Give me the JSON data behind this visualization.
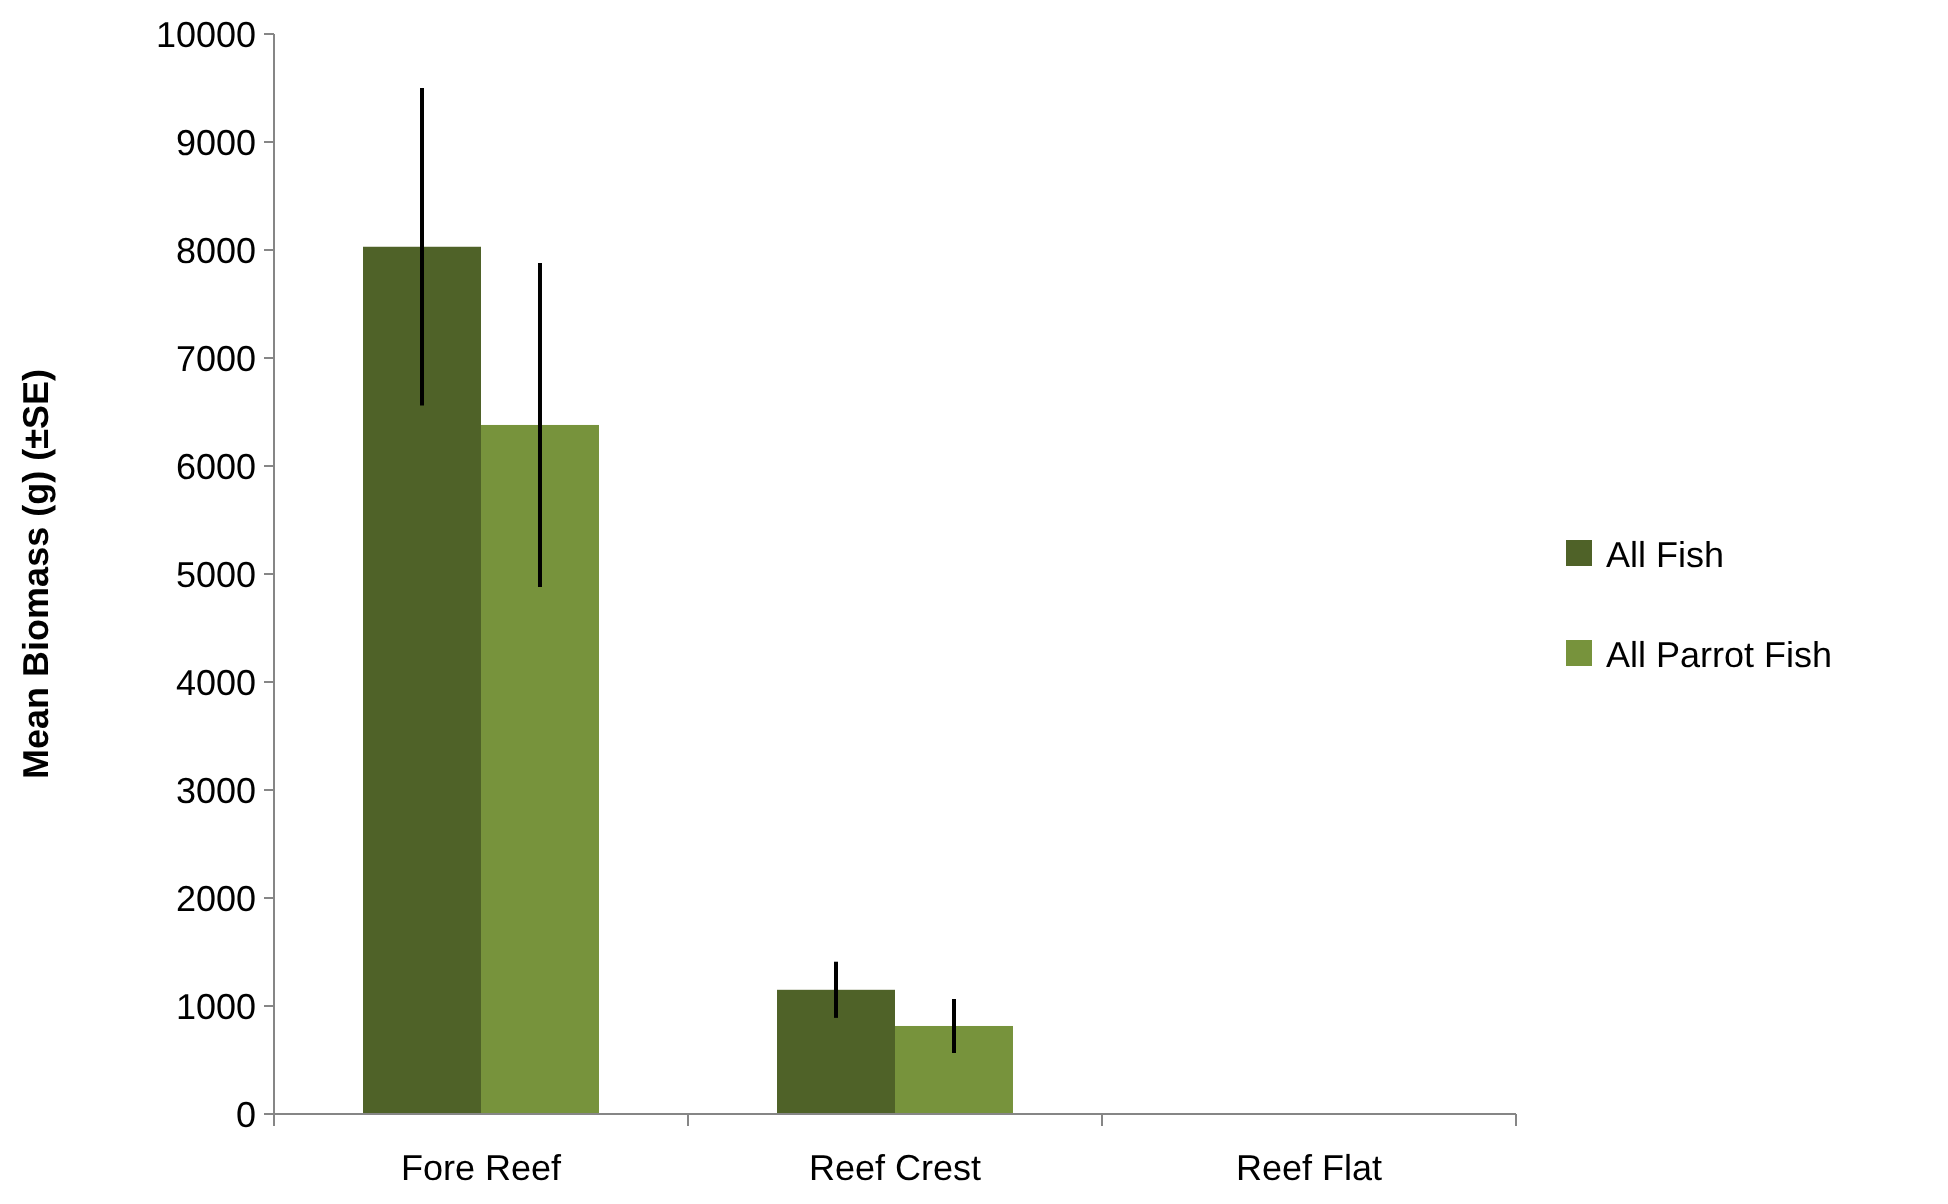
{
  "chart_data": {
    "type": "bar",
    "ylabel": "Mean Biomass (g) (±SE)",
    "categories": [
      "Fore Reef",
      "Reef Crest",
      "Reef Flat"
    ],
    "series": [
      {
        "name": "All Fish",
        "color": "#4f6228",
        "values": [
          8030,
          1150,
          0
        ],
        "errors": [
          1470,
          260,
          null
        ]
      },
      {
        "name": "All Parrot Fish",
        "color": "#77933c",
        "values": [
          6380,
          815,
          0
        ],
        "errors": [
          1500,
          250,
          null
        ]
      }
    ],
    "ylim": [
      0,
      10000
    ],
    "yticks": [
      0,
      1000,
      2000,
      3000,
      4000,
      5000,
      6000,
      7000,
      8000,
      9000,
      10000
    ],
    "grid": false,
    "legend": "right"
  }
}
